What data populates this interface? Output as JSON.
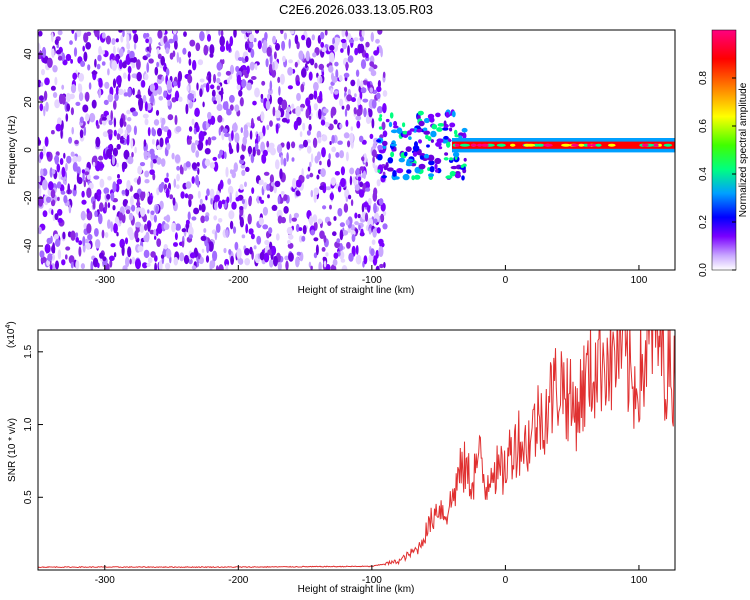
{
  "title": "C2E6.2026.033.13.05.R03",
  "chart_data": [
    {
      "type": "heatmap",
      "title": "",
      "xlabel": "Height of straight line (km)",
      "ylabel": "Frequency (Hz)",
      "xlim": [
        -350,
        127
      ],
      "ylim": [
        -50,
        50
      ],
      "xticks": [
        -300,
        -200,
        -100,
        0,
        100
      ],
      "yticks": [
        -40,
        -20,
        0,
        20,
        40
      ],
      "noise_region_x": [
        -350,
        -90
      ],
      "tone_region_x": [
        -90,
        127
      ],
      "tone_frequency_hz": 2,
      "colorbar": {
        "label": "Normalized spectral amplitude",
        "range": [
          0,
          1
        ],
        "ticks": [
          "0.0",
          "0.2",
          "0.4",
          "0.6",
          "0.8"
        ],
        "colors": [
          "#ffffff",
          "#c9a8ff",
          "#7a00ff",
          "#0000ff",
          "#00a0ff",
          "#00ff80",
          "#40ff00",
          "#ffff00",
          "#ff8000",
          "#ff0000",
          "#ff0080"
        ]
      }
    },
    {
      "type": "line",
      "title": "",
      "xlabel": "Height of straight line (km)",
      "ylabel": "SNR (10 * v/v)",
      "yscale_label": "(x10",
      "yscale_exponent": "4",
      "xlim": [
        -350,
        127
      ],
      "ylim": [
        0,
        16500
      ],
      "xticks": [
        -300,
        -200,
        -100,
        0,
        100
      ],
      "yticks": [
        0.5,
        1.0,
        1.5
      ],
      "ytick_labels": [
        "0.5",
        "1.0",
        "1.5"
      ],
      "line_color": "#e03030",
      "series": [
        {
          "name": "SNR",
          "x": [
            -350,
            -200,
            -100,
            -80,
            -65,
            -60,
            -55,
            -50,
            -45,
            -40,
            -35,
            -30,
            -25,
            -20,
            -15,
            -10,
            -5,
            0,
            5,
            10,
            15,
            20,
            25,
            30,
            35,
            40,
            45,
            50,
            55,
            60,
            65,
            70,
            75,
            80,
            85,
            90,
            95,
            100,
            105,
            110,
            115,
            120,
            127
          ],
          "y": [
            200,
            200,
            250,
            600,
            1500,
            2500,
            3500,
            4500,
            3800,
            4800,
            6500,
            7000,
            6000,
            8000,
            5500,
            7500,
            6500,
            7000,
            8500,
            9000,
            8500,
            9500,
            10500,
            11000,
            12000,
            13000,
            12500,
            11000,
            11500,
            13000,
            13500,
            14500,
            15000,
            14000,
            15500,
            14500,
            12500,
            13500,
            14500,
            16500,
            16000,
            14000,
            13000
          ]
        }
      ]
    }
  ]
}
